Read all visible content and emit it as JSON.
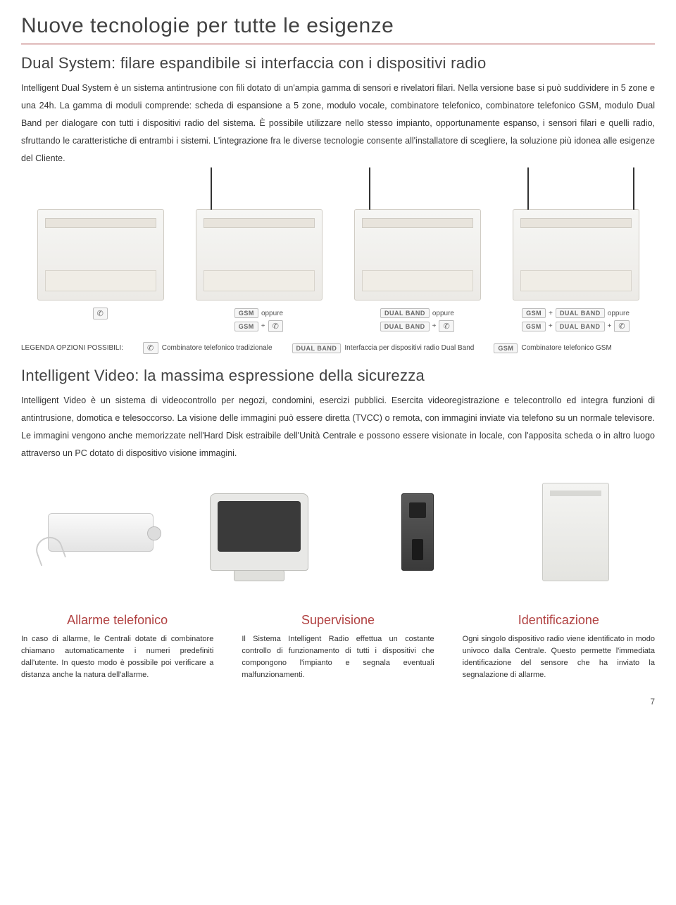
{
  "colors": {
    "rule": "#a03030",
    "title": "#424242",
    "feature_title": "#b04040",
    "text": "#333333",
    "background": "#ffffff"
  },
  "typography": {
    "main_title_fontsize": 30,
    "subtitle_fontsize": 22,
    "body_fontsize": 12.5,
    "feature_title_fontsize": 18,
    "feature_body_fontsize": 11,
    "legend_fontsize": 10
  },
  "main_title": "Nuove tecnologie per tutte le esigenze",
  "section1": {
    "subtitle": "Dual System: filare espandibile si interfaccia con i dispositivi radio",
    "body": "Intelligent Dual System è un sistema antintrusione con fili dotato di un'ampia gamma di sensori e rivelatori filari. Nella versione base si può suddividere in 5 zone e una 24h. La gamma di moduli comprende: scheda di espansione a 5 zone, modulo vocale, combinatore telefonico, combinatore telefonico GSM, modulo Dual Band per dialogare con tutti i dispositivi radio del sistema. È possibile utilizzare nello stesso impianto, opportunamente espanso, i sensori filari e quelli radio, sfruttando le caratteristiche di entrambi i sistemi. L'integrazione fra le diverse tecnologie consente all'installatore di scegliere, la soluzione più idonea alle esigenze del Cliente."
  },
  "products": [
    {
      "antennas": 0,
      "line1": [
        "phone"
      ],
      "line2": []
    },
    {
      "antennas": 1,
      "line1": [
        "GSM",
        "oppure"
      ],
      "line2": [
        "GSM",
        "+",
        "phone"
      ]
    },
    {
      "antennas": 1,
      "line1": [
        "DUAL BAND",
        "oppure"
      ],
      "line2": [
        "DUAL BAND",
        "+",
        "phone"
      ]
    },
    {
      "antennas": 2,
      "line1": [
        "GSM",
        "+",
        "DUAL BAND",
        "oppure"
      ],
      "line2": [
        "GSM",
        "+",
        "DUAL BAND",
        "+",
        "phone"
      ]
    }
  ],
  "legend": {
    "label": "LEGENDA OPZIONI POSSIBILI:",
    "items": [
      {
        "badge": "phone",
        "text": "Combinatore telefonico tradizionale"
      },
      {
        "badge": "DUAL BAND",
        "text": "Interfaccia per dispositivi radio Dual Band"
      },
      {
        "badge": "GSM",
        "text": "Combinatore telefonico GSM"
      }
    ]
  },
  "section2": {
    "title": "Intelligent Video: la massima espressione della sicurezza",
    "body": "Intelligent Video è un sistema di videocontrollo per negozi, condomini, esercizi pubblici. Esercita videoregistrazione e telecontrollo ed integra funzioni di antintrusione, domotica e telesoccorso. La visione delle immagini può essere diretta (TVCC) o remota, con immagini inviate via telefono su un normale televisore. Le immagini vengono anche memorizzate nell'Hard Disk estraibile dell'Unità Centrale e possono essere visionate in locale, con l'apposita scheda o in altro luogo attraverso un PC dotato di dispositivo visione immagini."
  },
  "features": [
    {
      "title": "Allarme telefonico",
      "text": "In caso di allarme, le Centrali dotate di combinatore chiamano automaticamente i numeri predefiniti dall'utente. In questo modo è possibile poi verificare a distanza anche la natura dell'allarme."
    },
    {
      "title": "Supervisione",
      "text": "Il Sistema Intelligent Radio effettua un costante controllo di funzionamento di tutti i dispositivi che compongono l'impianto e segnala eventuali malfunzionamenti."
    },
    {
      "title": "Identificazione",
      "text": "Ogni singolo dispositivo radio viene identificato in modo univoco dalla Centrale. Questo permette l'immediata identificazione del sensore che ha inviato la segnalazione di allarme."
    }
  ],
  "page_number": "7"
}
